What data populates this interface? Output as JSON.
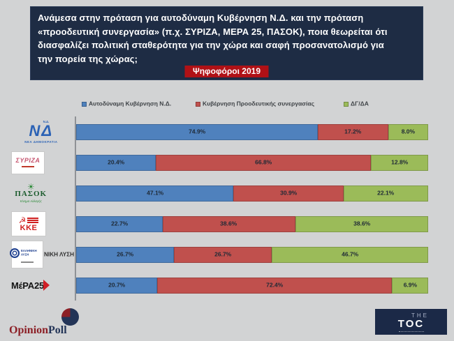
{
  "header": {
    "question": "Ανάμεσα στην πρόταση για αυτοδύναμη Κυβέρνηση Ν.Δ. και την πρόταση «προοδευτική συνεργασία» (π.χ. ΣΥΡΙΖΑ, ΜΕΡΑ 25, ΠΑΣΟΚ), ποια θεωρείται ότι διασφαλίζει πολιτική σταθερότητα για την χώρα και σαφή προσανατολισμό για την πορεία της χώρας;",
    "badge": "Ψηφοφόροι 2019",
    "panel_color": "#1e2c44",
    "badge_color": "#b01116"
  },
  "legend": {
    "position": "top",
    "items": [
      {
        "label": "Αυτοδύναμη Κυβέρνηση Ν.Δ.",
        "color": "#4f81bd"
      },
      {
        "label": "Κυβέρνηση Προοδευτικής συνεργασίας",
        "color": "#c0504d"
      },
      {
        "label": "ΔΓ/ΔΑ",
        "color": "#9bbb59"
      }
    ]
  },
  "chart_data": {
    "type": "bar",
    "orientation": "horizontal",
    "stacked": true,
    "grid": false,
    "value_suffix": "%",
    "xlim": [
      0,
      100
    ],
    "categories": [
      "ΝΕΑ ΔΗΜΟΚΡΑΤΙΑ",
      "ΣΥΡΙΖΑ",
      "ΠΑΣΟΚ",
      "ΚΚΕ",
      "ΕΛΛΗΝΙΚΗ ΛΥΣΗ",
      "ΜέΡΑ25"
    ],
    "series": [
      {
        "name": "Αυτοδύναμη Κυβέρνηση Ν.Δ.",
        "color": "#4f81bd",
        "values": [
          74.9,
          20.4,
          47.1,
          22.7,
          26.7,
          20.7
        ]
      },
      {
        "name": "Κυβέρνηση Προοδευτικής συνεργασίας",
        "color": "#c0504d",
        "values": [
          17.2,
          66.8,
          30.9,
          38.6,
          26.7,
          72.4
        ]
      },
      {
        "name": "ΔΓ/ΔΑ",
        "color": "#9bbb59",
        "values": [
          8.0,
          12.8,
          22.1,
          38.6,
          46.7,
          6.9
        ]
      }
    ]
  },
  "parties": [
    {
      "style": "nd",
      "label": "ΝΕΑ ΔΗΜΟΚΡΑΤΙΑ",
      "top_text": "Ν.Δ.",
      "monogram": "ΝΔ",
      "caption": "ΝΕΑ ΔΗΜΟΚΡΑΤΙΑ"
    },
    {
      "style": "syriza",
      "label": "ΣΥΡΙΖΑ",
      "monogram": "ΣΥΡΙΖΑ"
    },
    {
      "style": "pasok",
      "label": "ΠΑΣΟΚ",
      "monogram": "ΠΑΣΟΚ",
      "caption": "Κίνημα Αλλαγής"
    },
    {
      "style": "kke",
      "label": "ΚΚΕ",
      "monogram": "ΚΚΕ"
    },
    {
      "style": "lysi",
      "label": "ΕΛΛΗΝΙΚΗ ΛΥΣΗ",
      "monogram": "ΕΛΛΗΝΙΚΗ ΛΥΣΗ",
      "overlay": "ΝΙΚΗ ΛΥΣΗ"
    },
    {
      "style": "mera",
      "label": "ΜέΡΑ25",
      "monogram": "ΜέΡΑ25"
    }
  ],
  "footer": {
    "opinionpoll": {
      "part1": "Opinion",
      "part2": "Poll"
    },
    "toc": {
      "the": "THE",
      "toc": "TOC"
    }
  }
}
